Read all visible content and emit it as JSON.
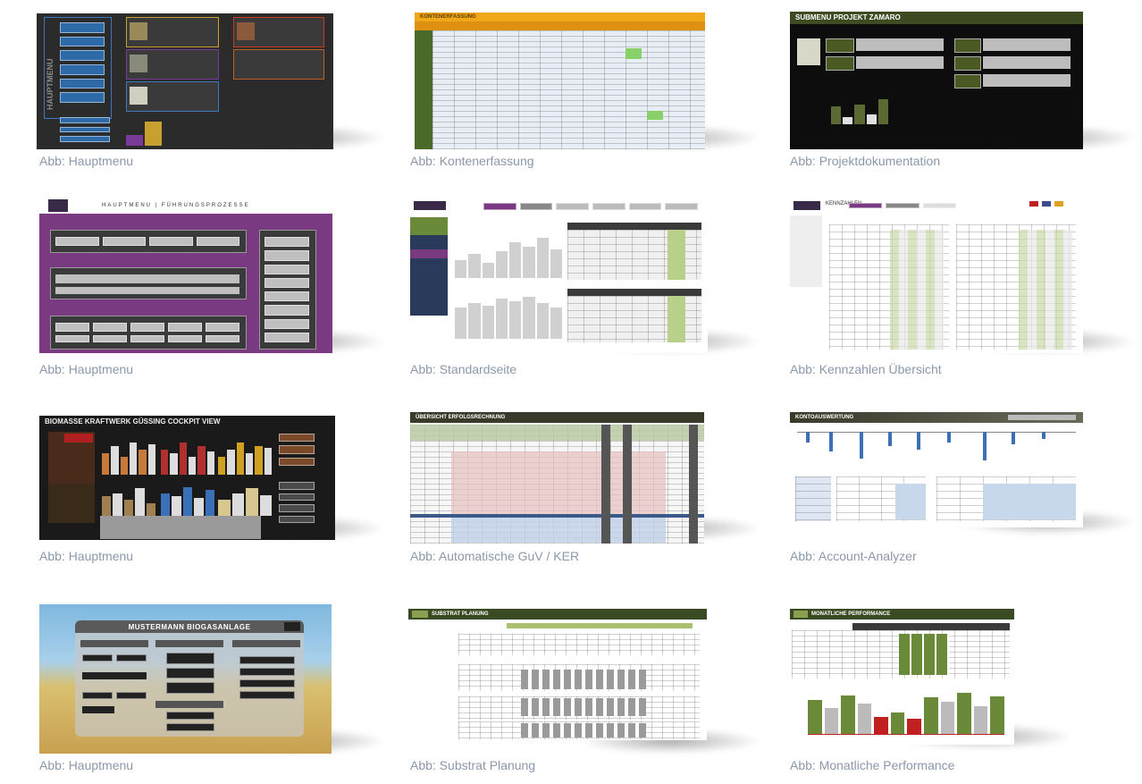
{
  "gallery": [
    {
      "caption": "Abb: Hauptmenu",
      "screen_title": "HAUPTMENU"
    },
    {
      "caption": "Abb: Kontenerfassung",
      "screen_title": "KONTENERFASSUNG"
    },
    {
      "caption": "Abb: Projektdokumentation",
      "screen_title": "SUBMENU PROJEKT ZAMARO"
    },
    {
      "caption": "Abb: Hauptmenu",
      "screen_title": "HAUPTMENU | FÜHRUNGSPROZESSE"
    },
    {
      "caption": "Abb: Standardseite",
      "screen_title": ""
    },
    {
      "caption": "Abb: Kennzahlen Übersicht",
      "screen_title": "KENNZAHLEN"
    },
    {
      "caption": "Abb: Hauptmenu",
      "screen_title": "BIOMASSE KRAFTWERK GÜSSING COCKPIT VIEW"
    },
    {
      "caption": "Abb: Automatische GuV / KER",
      "screen_title": "ÜBERSICHT ERFOLGSRECHNUNG"
    },
    {
      "caption": "Abb: Account-Analyzer",
      "screen_title": "KONTOAUSWERTUNG"
    },
    {
      "caption": "Abb: Hauptmenu",
      "screen_title": "MUSTERMANN BIOGASANLAGE"
    },
    {
      "caption": "Abb: Substrat Planung",
      "screen_title": "SUBSTRAT PLANUNG"
    },
    {
      "caption": "Abb: Monatliche Performance",
      "screen_title": "MONATLICHE PERFORMANCE"
    }
  ],
  "colors": {
    "caption": "#8a98ab",
    "dark_gray": "#2b2b2b",
    "excel_orange": "#f0a818",
    "excel_green": "#4a5a22",
    "purple": "#7a3a82",
    "blue_bar": "#3d6fb5"
  }
}
